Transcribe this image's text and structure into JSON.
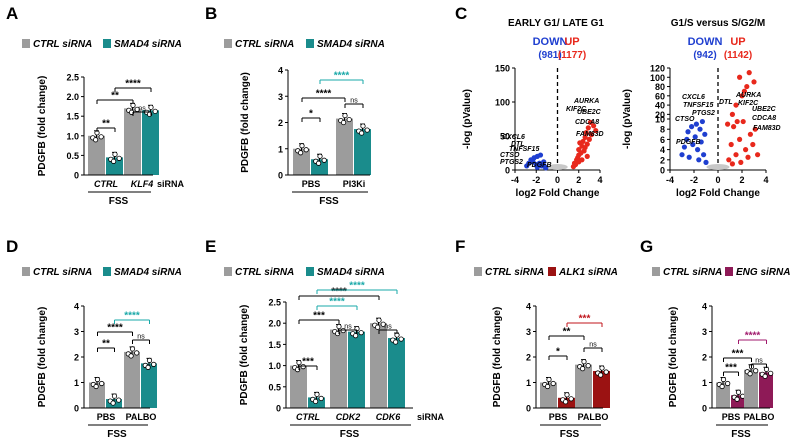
{
  "figure": {
    "colors": {
      "ctrl": "#9c9c9c",
      "smad4": "#1a8c8c",
      "alk1": "#9b1212",
      "eng": "#8e1a57",
      "up": "#e8281c",
      "down": "#1f3fd0",
      "teal_sig": "#18a8a8",
      "red_sig": "#c0141b",
      "purple_sig": "#a01a6c"
    }
  },
  "chart_data": [
    {
      "id": "A",
      "type": "bar",
      "legend": [
        "CTRL siRNA",
        "SMAD4 siRNA"
      ],
      "ylabel": "PDGFB (fold change)",
      "ylim": [
        0,
        2.5
      ],
      "yticks": [
        0,
        0.5,
        1.0,
        1.5,
        2.0,
        2.5
      ],
      "tick_labels": [
        "0",
        "0.5",
        "1.0",
        "1.5",
        "2.0",
        "2.5"
      ],
      "categories": [
        "CTRL",
        "KLF4"
      ],
      "group_axis_label": "siRNA",
      "xlabel": "FSS",
      "series": [
        {
          "name": "CTRL siRNA",
          "values": [
            1.0,
            1.7
          ]
        },
        {
          "name": "SMAD4 siRNA",
          "values": [
            0.45,
            1.65
          ]
        }
      ],
      "significance": [
        "**",
        "**",
        "****",
        "ns"
      ]
    },
    {
      "id": "B",
      "type": "bar",
      "legend": [
        "CTRL siRNA",
        "SMAD4 siRNA"
      ],
      "ylabel": "PDGFB (fold change)",
      "ylim": [
        0,
        4
      ],
      "yticks": [
        0,
        1,
        2,
        3,
        4
      ],
      "tick_labels": [
        "0",
        "1",
        "2",
        "3",
        "4"
      ],
      "categories": [
        "PBS",
        "PI3Ki"
      ],
      "xlabel": "FSS",
      "series": [
        {
          "name": "CTRL siRNA",
          "values": [
            1.0,
            2.15
          ]
        },
        {
          "name": "SMAD4 siRNA",
          "values": [
            0.6,
            1.75
          ]
        }
      ],
      "significance": [
        "*",
        "****",
        "****",
        "ns"
      ]
    },
    {
      "id": "C",
      "type": "scatter",
      "title": "EARLY G1/ LATE G1",
      "down_label": "DOWN",
      "down_count": "(981)",
      "up_label": "UP",
      "up_count": "(1177)",
      "xlabel": "log2 Fold Change",
      "ylabel": "-log (pValue)",
      "xlim": [
        -4,
        4
      ],
      "ylim": [
        0,
        150
      ],
      "xticks": [
        "-4",
        "-2",
        "0",
        "2",
        "4"
      ],
      "yticks": [
        "0",
        "50",
        "100",
        "150"
      ],
      "up_genes": [
        "AURKA",
        "KIF2C",
        "UBE2C",
        "CDCA8",
        "FAM83D"
      ],
      "down_genes": [
        "CXCL6",
        "DTL",
        "TNFSF15",
        "CTSO",
        "PTGS2",
        "PDGFB"
      ],
      "up_points": [
        [
          2.0,
          22
        ],
        [
          2.3,
          35
        ],
        [
          1.8,
          15
        ],
        [
          2.6,
          48
        ],
        [
          2.9,
          62
        ],
        [
          3.1,
          70
        ],
        [
          2.4,
          42
        ],
        [
          2.7,
          55
        ],
        [
          1.6,
          10
        ],
        [
          2.0,
          30
        ],
        [
          2.2,
          25
        ],
        [
          2.8,
          38
        ],
        [
          3.4,
          65
        ],
        [
          3.0,
          45
        ],
        [
          1.9,
          18
        ],
        [
          2.5,
          28
        ],
        [
          3.2,
          52
        ],
        [
          2.1,
          40
        ],
        [
          1.7,
          8
        ],
        [
          2.6,
          33
        ],
        [
          3.6,
          58
        ],
        [
          2.3,
          15
        ],
        [
          1.5,
          5
        ],
        [
          2.0,
          12
        ],
        [
          2.8,
          20
        ]
      ],
      "down_points": [
        [
          -1.6,
          22
        ],
        [
          -1.9,
          20
        ],
        [
          -2.2,
          18
        ],
        [
          -2.5,
          15
        ],
        [
          -1.3,
          12
        ],
        [
          -1.7,
          10
        ],
        [
          -2.0,
          8
        ],
        [
          -2.7,
          10
        ],
        [
          -1.2,
          5
        ],
        [
          -1.5,
          6
        ],
        [
          -2.3,
          12
        ],
        [
          -1.9,
          4
        ],
        [
          -2.9,
          6
        ],
        [
          -1.1,
          3
        ]
      ]
    },
    {
      "id": "C2",
      "type": "scatter",
      "title": "G1/S versus S/G2/M",
      "down_label": "DOWN",
      "down_count": "(942)",
      "up_label": "UP",
      "up_count": "(1142)",
      "xlabel": "log2 Fold Change",
      "ylabel": "-log (pValue)",
      "xlim": [
        -4,
        4
      ],
      "ylim": [
        0,
        120
      ],
      "xticks": [
        "-4",
        "-2",
        "0",
        "2",
        "4"
      ],
      "yticks": [
        "0",
        "2",
        "4",
        "6",
        "8",
        "10",
        "20",
        "40",
        "60",
        "80",
        "100",
        "120"
      ],
      "up_genes": [
        "AURKA",
        "KIF2C",
        "UBE2C",
        "CDCA8",
        "FAM83D"
      ],
      "down_genes": [
        "CXCL6",
        "DTL",
        "TNFSF15",
        "PTGS2",
        "CTSO",
        "PDGFB"
      ],
      "up_points": [
        [
          2.0,
          60
        ],
        [
          2.4,
          80
        ],
        [
          1.5,
          40
        ],
        [
          1.8,
          100
        ],
        [
          2.6,
          110
        ],
        [
          3.0,
          90
        ],
        [
          2.2,
          70
        ],
        [
          1.2,
          20
        ],
        [
          1.6,
          9.5
        ],
        [
          2.1,
          9.5
        ],
        [
          1.3,
          8.5
        ],
        [
          2.7,
          7
        ],
        [
          1.8,
          6
        ],
        [
          1.1,
          5
        ],
        [
          2.3,
          4
        ],
        [
          1.5,
          3
        ],
        [
          0.9,
          2
        ],
        [
          3.1,
          8
        ],
        [
          2.9,
          5
        ],
        [
          1.2,
          1.2
        ],
        [
          2.5,
          2.5
        ],
        [
          0.8,
          9
        ],
        [
          1.9,
          1.5
        ],
        [
          3.3,
          3
        ]
      ],
      "down_points": [
        [
          -1.3,
          9.5
        ],
        [
          -1.8,
          9
        ],
        [
          -2.2,
          8.5
        ],
        [
          -1.5,
          8
        ],
        [
          -2.5,
          7.5
        ],
        [
          -1.1,
          7
        ],
        [
          -1.9,
          6.5
        ],
        [
          -2.6,
          6
        ],
        [
          -1.4,
          5.5
        ],
        [
          -2.1,
          5
        ],
        [
          -1.7,
          4
        ],
        [
          -2.8,
          4.5
        ],
        [
          -1.2,
          3
        ],
        [
          -2.4,
          2.5
        ],
        [
          -1.6,
          2
        ],
        [
          -3.0,
          3
        ],
        [
          -1.0,
          1.5
        ]
      ]
    },
    {
      "id": "D",
      "type": "bar",
      "legend": [
        "CTRL siRNA",
        "SMAD4 siRNA"
      ],
      "ylabel": "PDGFB (fold change)",
      "ylim": [
        0,
        4
      ],
      "yticks": [
        0,
        1,
        2,
        3,
        4
      ],
      "tick_labels": [
        "0",
        "1",
        "2",
        "3",
        "4"
      ],
      "categories": [
        "PBS",
        "PALBO"
      ],
      "xlabel": "FSS",
      "series": [
        {
          "name": "CTRL siRNA",
          "values": [
            1.0,
            2.2
          ]
        },
        {
          "name": "SMAD4 siRNA",
          "values": [
            0.35,
            1.75
          ]
        }
      ],
      "significance": [
        "**",
        "****",
        "****",
        "ns"
      ]
    },
    {
      "id": "E",
      "type": "bar",
      "legend": [
        "CTRL siRNA",
        "SMAD4 siRNA"
      ],
      "ylabel": "PDGFB (fold change)",
      "ylim": [
        0,
        2.5
      ],
      "yticks": [
        0,
        0.5,
        1.0,
        1.5,
        2.0,
        2.5
      ],
      "tick_labels": [
        "0",
        "0.5",
        "1.0",
        "1.5",
        "2.0",
        "2.5"
      ],
      "categories": [
        "CTRL",
        "CDK2",
        "CDK6"
      ],
      "group_axis_label": "siRNA",
      "xlabel": "FSS",
      "series": [
        {
          "name": "CTRL siRNA",
          "values": [
            1.0,
            1.85,
            2.0
          ]
        },
        {
          "name": "SMAD4 siRNA",
          "values": [
            0.25,
            1.8,
            1.65
          ]
        }
      ],
      "significance": [
        "***",
        "***",
        "****",
        "****",
        "****",
        "ns",
        "ns"
      ]
    },
    {
      "id": "F",
      "type": "bar",
      "legend": [
        "CTRL siRNA",
        "ALK1 siRNA"
      ],
      "ylabel": "PDGFB (fold change)",
      "ylim": [
        0,
        4
      ],
      "yticks": [
        0,
        1,
        2,
        3,
        4
      ],
      "tick_labels": [
        "0",
        "1",
        "2",
        "3",
        "4"
      ],
      "categories": [
        "PBS",
        "PALBO"
      ],
      "xlabel": "FSS",
      "series": [
        {
          "name": "CTRL siRNA",
          "values": [
            1.0,
            1.7
          ]
        },
        {
          "name": "ALK1 siRNA",
          "values": [
            0.4,
            1.45
          ]
        }
      ],
      "significance": [
        "*",
        "**",
        "***",
        "ns"
      ]
    },
    {
      "id": "G",
      "type": "bar",
      "legend": [
        "CTRL siRNA",
        "ENG siRNA"
      ],
      "ylabel": "PDGFB (fold change)",
      "ylim": [
        0,
        4
      ],
      "yticks": [
        0,
        1,
        2,
        3,
        4
      ],
      "tick_labels": [
        "0",
        "1",
        "2",
        "3",
        "4"
      ],
      "categories": [
        "PBS",
        "PALBO"
      ],
      "xlabel": "FSS",
      "series": [
        {
          "name": "CTRL siRNA",
          "values": [
            1.0,
            1.5
          ]
        },
        {
          "name": "ENG siRNA",
          "values": [
            0.5,
            1.4
          ]
        }
      ],
      "significance": [
        "***",
        "***",
        "****",
        "ns"
      ]
    }
  ]
}
